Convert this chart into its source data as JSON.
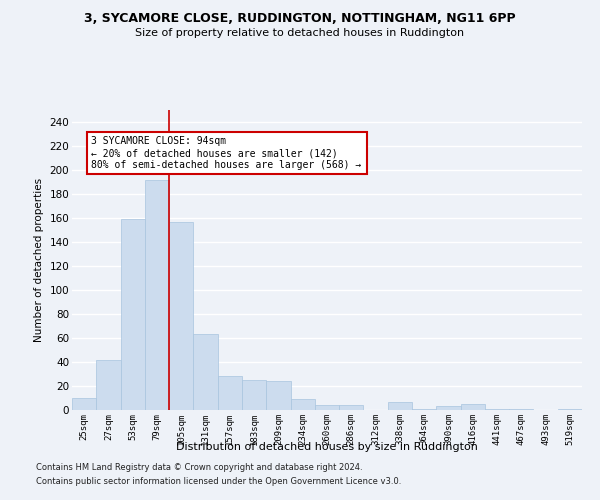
{
  "title1": "3, SYCAMORE CLOSE, RUDDINGTON, NOTTINGHAM, NG11 6PP",
  "title2": "Size of property relative to detached houses in Ruddington",
  "xlabel": "Distribution of detached houses by size in Ruddington",
  "ylabel": "Number of detached properties",
  "bar_color": "#ccdcee",
  "bar_edge_color": "#a8c4de",
  "categories": [
    "25sqm",
    "27sqm",
    "53sqm",
    "79sqm",
    "105sqm",
    "131sqm",
    "157sqm",
    "183sqm",
    "209sqm",
    "234sqm",
    "260sqm",
    "286sqm",
    "312sqm",
    "338sqm",
    "364sqm",
    "390sqm",
    "416sqm",
    "441sqm",
    "467sqm",
    "493sqm",
    "519sqm"
  ],
  "values": [
    10,
    42,
    159,
    192,
    157,
    63,
    28,
    25,
    24,
    9,
    4,
    4,
    0,
    7,
    1,
    3,
    5,
    1,
    1,
    0,
    1
  ],
  "ylim": [
    0,
    250
  ],
  "yticks": [
    0,
    20,
    40,
    60,
    80,
    100,
    120,
    140,
    160,
    180,
    200,
    220,
    240
  ],
  "property_line_x": 3.5,
  "annotation_text": "3 SYCAMORE CLOSE: 94sqm\n← 20% of detached houses are smaller (142)\n80% of semi-detached houses are larger (568) →",
  "annotation_box_color": "#ffffff",
  "annotation_box_edge": "#cc0000",
  "vline_color": "#cc0000",
  "footer1": "Contains HM Land Registry data © Crown copyright and database right 2024.",
  "footer2": "Contains public sector information licensed under the Open Government Licence v3.0.",
  "background_color": "#eef2f8",
  "grid_color": "#ffffff"
}
